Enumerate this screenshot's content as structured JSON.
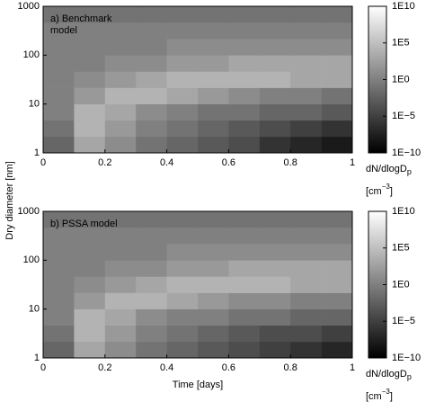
{
  "chart_data": [
    {
      "type": "heatmap",
      "annotation": [
        "a) Benchmark",
        "model"
      ],
      "ylabel": "Dry diameter [nm]",
      "xlim": [
        0,
        1
      ],
      "xticks": [
        0,
        0.2,
        0.4,
        0.6,
        0.8,
        1
      ],
      "ylim": [
        1,
        1000
      ],
      "yticks": [
        1,
        10,
        100,
        1000
      ],
      "yscale": "log",
      "x_edges": [
        0,
        0.1,
        0.2,
        0.3,
        0.4,
        0.5,
        0.6,
        0.7,
        0.8,
        0.9,
        1
      ],
      "y_edges": [
        1,
        2.154,
        4.642,
        10,
        21.54,
        46.42,
        100,
        215.4,
        464.2,
        1000
      ],
      "z": [
        [
          0.01,
          1000.0,
          10.0,
          0.1,
          0.01,
          0.001,
          0.0001,
          1e-06,
          1e-07,
          1e-08
        ],
        [
          0.1,
          10000.0,
          100.0,
          1.0,
          0.1,
          0.01,
          0.001,
          0.0001,
          1e-05,
          1e-06
        ],
        [
          1.0,
          10000.0,
          1000.0,
          10.0,
          1.0,
          0.1,
          0.1,
          0.01,
          0.01,
          0.001
        ],
        [
          1.0,
          100.0,
          10000.0,
          10000.0,
          1000.0,
          100.0,
          10.0,
          1.0,
          1.0,
          0.1
        ],
        [
          1.0,
          10.0,
          100.0,
          1000.0,
          10000.0,
          10000.0,
          10000.0,
          10000.0,
          1000.0,
          1000.0
        ],
        [
          1.0,
          1.0,
          10.0,
          10.0,
          100.0,
          100.0,
          1000.0,
          1000.0,
          1000.0,
          1000.0
        ],
        [
          1.0,
          1.0,
          1.0,
          1.0,
          10.0,
          10.0,
          10.0,
          10.0,
          10.0,
          10.0
        ],
        [
          1.0,
          1.0,
          1.0,
          1.0,
          1.0,
          1.0,
          1.0,
          1.0,
          1.0,
          1.0
        ],
        [
          0.1,
          0.1,
          0.1,
          0.1,
          0.1,
          0.1,
          0.1,
          0.1,
          0.1,
          0.1
        ]
      ],
      "colorlim": [
        1e-10,
        10000000000.0
      ],
      "colorscale": "log",
      "cticks": [
        {
          "value": 1e-10,
          "label": "1E−10"
        },
        {
          "value": 1e-05,
          "label": "1E−5"
        },
        {
          "value": 1,
          "label": "1E0"
        },
        {
          "value": 100000.0,
          "label": "1E5"
        },
        {
          "value": 10000000000.0,
          "label": "1E10"
        }
      ],
      "colorbar_label": "dN/dlogD",
      "colorbar_label_sub": "p",
      "colorbar_unit": "[cm",
      "colorbar_unit_sup": "−3",
      "colorbar_unit_end": "]"
    },
    {
      "type": "heatmap",
      "annotation": [
        "b) PSSA model"
      ],
      "xlabel": "Time [days]",
      "xlim": [
        0,
        1
      ],
      "xticks": [
        0,
        0.2,
        0.4,
        0.6,
        0.8,
        1
      ],
      "ylim": [
        1,
        1000
      ],
      "yticks": [
        1,
        10,
        100,
        1000
      ],
      "yscale": "log",
      "x_edges": [
        0,
        0.1,
        0.2,
        0.3,
        0.4,
        0.5,
        0.6,
        0.7,
        0.8,
        0.9,
        1
      ],
      "y_edges": [
        1,
        2.154,
        4.642,
        10,
        21.54,
        46.42,
        100,
        215.4,
        464.2,
        1000
      ],
      "z": [
        [
          0.01,
          1000.0,
          10.0,
          0.1,
          0.01,
          0.001,
          0.0001,
          1e-05,
          1e-06,
          1e-07
        ],
        [
          0.1,
          10000.0,
          100.0,
          1.0,
          0.1,
          0.01,
          0.001,
          0.0001,
          0.0001,
          1e-05
        ],
        [
          1.0,
          10000.0,
          1000.0,
          10.0,
          1.0,
          1.0,
          0.1,
          0.1,
          0.01,
          0.01
        ],
        [
          1.0,
          100.0,
          10000.0,
          10000.0,
          1000.0,
          100.0,
          10.0,
          10.0,
          1.0,
          1.0
        ],
        [
          1.0,
          10.0,
          100.0,
          1000.0,
          10000.0,
          10000.0,
          10000.0,
          10000.0,
          1000.0,
          1000.0
        ],
        [
          1.0,
          1.0,
          10.0,
          10.0,
          100.0,
          100.0,
          1000.0,
          1000.0,
          1000.0,
          1000.0
        ],
        [
          1.0,
          1.0,
          1.0,
          1.0,
          10.0,
          10.0,
          10.0,
          10.0,
          10.0,
          10.0
        ],
        [
          1.0,
          1.0,
          1.0,
          1.0,
          1.0,
          1.0,
          1.0,
          1.0,
          1.0,
          1.0
        ],
        [
          0.1,
          0.1,
          0.1,
          0.1,
          0.1,
          0.1,
          0.1,
          0.1,
          0.1,
          0.1
        ]
      ],
      "colorlim": [
        1e-10,
        10000000000.0
      ],
      "colorscale": "log",
      "cticks": [
        {
          "value": 1e-10,
          "label": "1E−10"
        },
        {
          "value": 1e-05,
          "label": "1E−5"
        },
        {
          "value": 1,
          "label": "1E0"
        },
        {
          "value": 100000.0,
          "label": "1E5"
        },
        {
          "value": 10000000000.0,
          "label": "1E10"
        }
      ],
      "colorbar_label": "dN/dlogD",
      "colorbar_label_sub": "p",
      "colorbar_unit": "[cm",
      "colorbar_unit_sup": "−3",
      "colorbar_unit_end": "]"
    }
  ]
}
